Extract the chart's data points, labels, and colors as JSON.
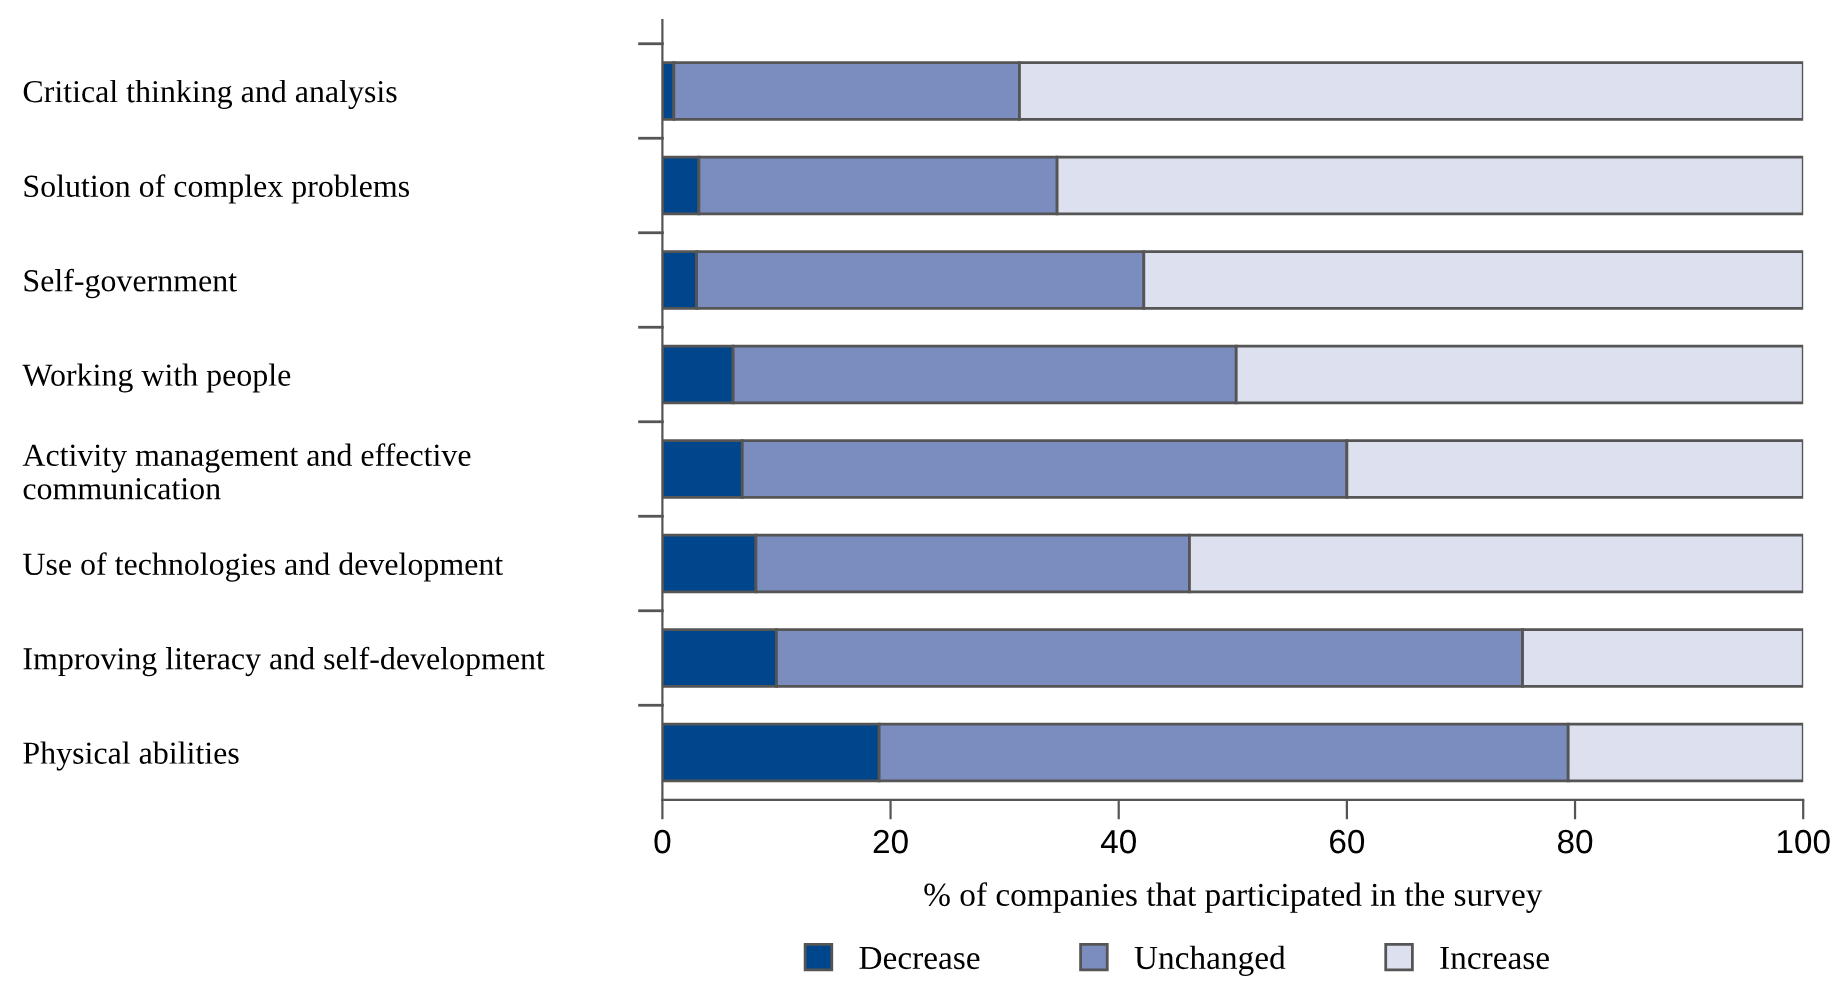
{
  "chart_data": {
    "type": "bar",
    "orientation": "horizontal",
    "stacked": true,
    "categories": [
      "Critical thinking and analysis",
      "Solution of complex problems",
      "Self-government",
      "Working with people",
      "Activity management and effective\ncommunication",
      "Use of technologies and development",
      "Improving literacy and self-development",
      "Physical abilities"
    ],
    "series": [
      {
        "name": "Decrease",
        "color": "#00468c",
        "values": [
          1.0,
          3.2,
          3.0,
          6.2,
          7.0,
          8.2,
          10.0,
          19.0
        ]
      },
      {
        "name": "Unchanged",
        "color": "#7b8cbf",
        "values": [
          30.3,
          31.4,
          39.2,
          44.1,
          53.0,
          38.0,
          65.4,
          60.4
        ]
      },
      {
        "name": "Increase",
        "color": "#dde0ef",
        "values": [
          68.7,
          65.4,
          57.8,
          49.7,
          40.0,
          53.8,
          24.6,
          20.6
        ]
      }
    ],
    "xlim": [
      0,
      100
    ],
    "xticks": [
      0,
      20,
      40,
      60,
      80,
      100
    ],
    "xlabel": "% of companies that participated in the survey",
    "legend": "bottom",
    "grid": false
  }
}
